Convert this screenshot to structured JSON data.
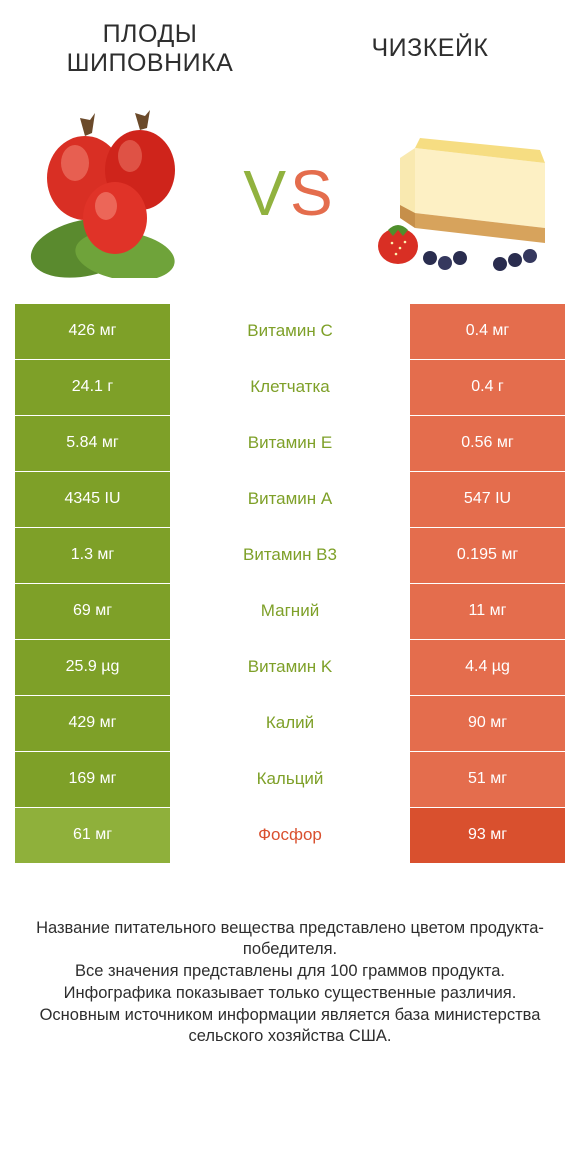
{
  "header": {
    "left_title": "ПЛОДЫ ШИПОВНИКА",
    "right_title": "ЧИЗКЕЙК",
    "vs_v": "V",
    "vs_s": "S"
  },
  "colors": {
    "green_normal": "#8fb03b",
    "green_win": "#7ea028",
    "orange_normal": "#e46d4d",
    "orange_win": "#d9502e",
    "text": "#2e2e2e",
    "bg": "#ffffff"
  },
  "rows": [
    {
      "left": "426 мг",
      "mid": "Витамин C",
      "right": "0.4 мг",
      "winner": "left"
    },
    {
      "left": "24.1 г",
      "mid": "Клетчатка",
      "right": "0.4 г",
      "winner": "left"
    },
    {
      "left": "5.84 мг",
      "mid": "Витамин E",
      "right": "0.56 мг",
      "winner": "left"
    },
    {
      "left": "4345 IU",
      "mid": "Витамин A",
      "right": "547 IU",
      "winner": "left"
    },
    {
      "left": "1.3 мг",
      "mid": "Витамин B3",
      "right": "0.195 мг",
      "winner": "left"
    },
    {
      "left": "69 мг",
      "mid": "Магний",
      "right": "11 мг",
      "winner": "left"
    },
    {
      "left": "25.9 µg",
      "mid": "Витамин K",
      "right": "4.4 µg",
      "winner": "left"
    },
    {
      "left": "429 мг",
      "mid": "Калий",
      "right": "90 мг",
      "winner": "left"
    },
    {
      "left": "169 мг",
      "mid": "Кальций",
      "right": "51 мг",
      "winner": "left"
    },
    {
      "left": "61 мг",
      "mid": "Фосфор",
      "right": "93 мг",
      "winner": "right"
    }
  ],
  "footer": {
    "line1": "Название питательного вещества представлено цветом продукта-победителя.",
    "line2": "Все значения представлены для 100 граммов продукта.",
    "line3": "Инфографика показывает только существенные различия.",
    "line4": "Основным источником информации является база министерства сельского хозяйства США."
  }
}
